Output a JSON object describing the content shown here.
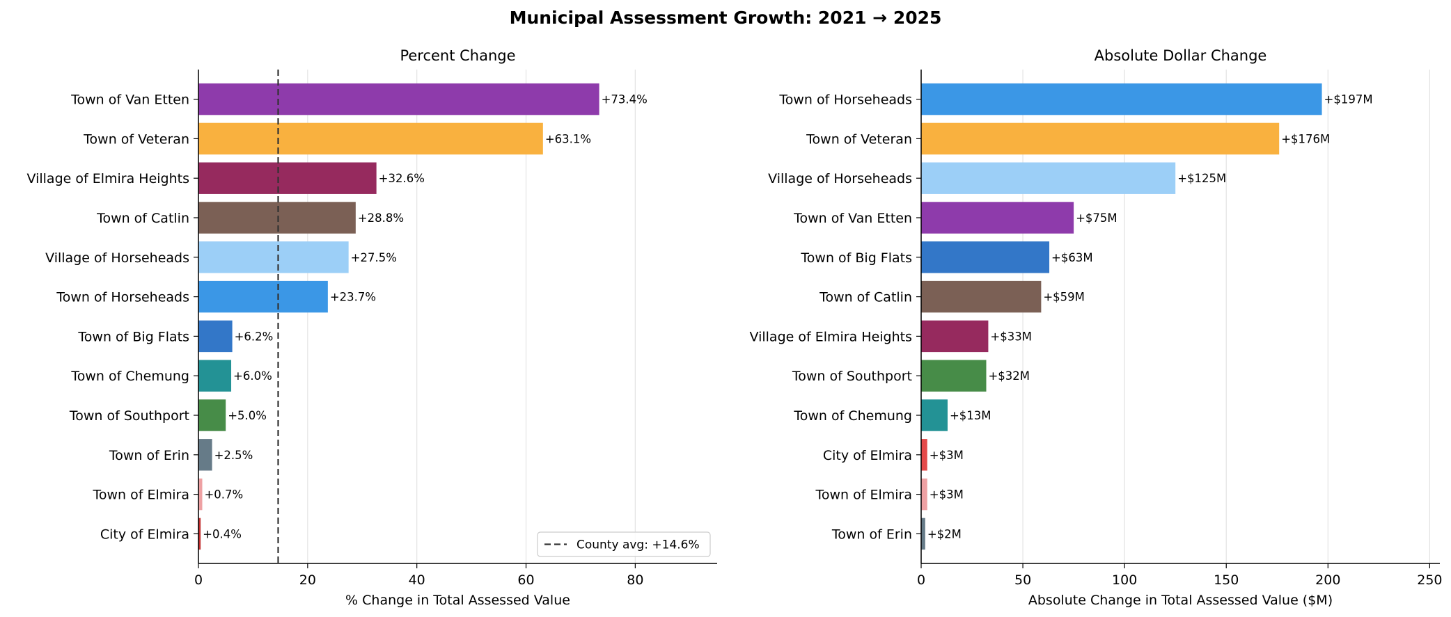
{
  "suptitle": "Municipal Assessment Growth: 2021 → 2025",
  "chart_data": [
    {
      "type": "bar",
      "orientation": "horizontal",
      "title": "Percent Change",
      "xlabel": "% Change in Total Assessed Value",
      "ylabel": "",
      "xlim": [
        0,
        95
      ],
      "xticks": [
        0,
        20,
        40,
        60,
        80
      ],
      "grid": "x",
      "categories": [
        "Town of Van Etten",
        "Town of Veteran",
        "Village of Elmira Heights",
        "Town of Catlin",
        "Village of Horseheads",
        "Town of Horseheads",
        "Town of Big Flats",
        "Town of Chemung",
        "Town of Southport",
        "Town of Erin",
        "Town of Elmira",
        "City of Elmira"
      ],
      "values": [
        73.4,
        63.1,
        32.6,
        28.8,
        27.5,
        23.7,
        6.2,
        6.0,
        5.0,
        2.5,
        0.7,
        0.4
      ],
      "data_labels": [
        "+73.4%",
        "+63.1%",
        "+32.6%",
        "+28.8%",
        "+27.5%",
        "+23.7%",
        "+6.2%",
        "+6.0%",
        "+5.0%",
        "+2.5%",
        "+0.7%",
        "+0.4%"
      ],
      "colors": [
        "#8e3bab",
        "#f9b13f",
        "#962a5e",
        "#7b6055",
        "#9ccff7",
        "#3b97e6",
        "#3377c8",
        "#239295",
        "#478c48",
        "#667b88",
        "#eea1a3",
        "#c22e2e"
      ],
      "reference_line": {
        "value": 14.6,
        "label": "County avg: +14.6%",
        "style": "dashed"
      },
      "legend": "lower-right"
    },
    {
      "type": "bar",
      "orientation": "horizontal",
      "title": "Absolute Dollar Change",
      "xlabel": "Absolute Change in Total Assessed Value ($M)",
      "ylabel": "",
      "xlim": [
        0,
        255
      ],
      "xticks": [
        0,
        50,
        100,
        150,
        200,
        250
      ],
      "grid": "x",
      "categories": [
        "Town of Horseheads",
        "Town of Veteran",
        "Village of Horseheads",
        "Town of Van Etten",
        "Town of Big Flats",
        "Town of Catlin",
        "Village of Elmira Heights",
        "Town of Southport",
        "Town of Chemung",
        "City of Elmira",
        "Town of Elmira",
        "Town of Erin"
      ],
      "values": [
        197,
        176,
        125,
        75,
        63,
        59,
        33,
        32,
        13,
        3,
        3,
        2
      ],
      "data_labels": [
        "+$197M",
        "+$176M",
        "+$125M",
        "+$75M",
        "+$63M",
        "+$59M",
        "+$33M",
        "+$32M",
        "+$13M",
        "+$3M",
        "+$3M",
        "+$2M"
      ],
      "colors": [
        "#3b97e6",
        "#f9b13f",
        "#9ccff7",
        "#8e3bab",
        "#3377c8",
        "#7b6055",
        "#962a5e",
        "#478c48",
        "#239295",
        "#e44a4a",
        "#eea1a3",
        "#667b88"
      ]
    }
  ]
}
